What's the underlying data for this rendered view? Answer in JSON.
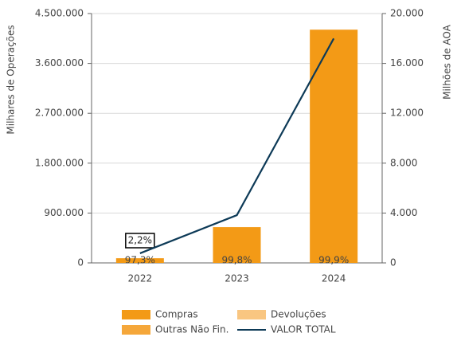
{
  "chart_data": {
    "type": "bar-line",
    "ylabel": "Milhares de Operações",
    "y2label": "Milhões de AOA",
    "categories": [
      "2022",
      "2023",
      "2024"
    ],
    "series": [
      {
        "name": "Compras",
        "color": "#f39a16",
        "values": [
          84000,
          646000,
          4208000
        ],
        "value_labels": [
          "97,3%",
          "99,8%",
          "99,9%"
        ]
      },
      {
        "name": "Devoluções",
        "color": "#f9c681",
        "values": [
          400,
          1000,
          3000
        ]
      },
      {
        "name": "Outras Não Fin.",
        "color": "#f5a73a",
        "values": [
          1900,
          300,
          1000
        ],
        "value_labels": [
          "2,2%",
          null,
          null
        ]
      },
      {
        "name": "VALOR TOTAL",
        "color": "#0d3a57",
        "type": "line",
        "axis": "y2",
        "values": [
          770,
          3830,
          18000
        ]
      }
    ],
    "ylim": [
      0,
      4500000
    ],
    "yticks": [
      {
        "value": 0,
        "label": "0"
      },
      {
        "value": 900000,
        "label": "900.000"
      },
      {
        "value": 1800000,
        "label": "1.800.000"
      },
      {
        "value": 2700000,
        "label": "2.700.000"
      },
      {
        "value": 3600000,
        "label": "3.600.000"
      },
      {
        "value": 4500000,
        "label": "4.500.000"
      }
    ],
    "y2lim": [
      0,
      20000
    ],
    "y2ticks": [
      {
        "value": 0,
        "label": "0"
      },
      {
        "value": 4000,
        "label": "4.000"
      },
      {
        "value": 8000,
        "label": "8.000"
      },
      {
        "value": 12000,
        "label": "12.000"
      },
      {
        "value": 16000,
        "label": "16.000"
      },
      {
        "value": 20000,
        "label": "20.000"
      }
    ],
    "grid": true
  }
}
